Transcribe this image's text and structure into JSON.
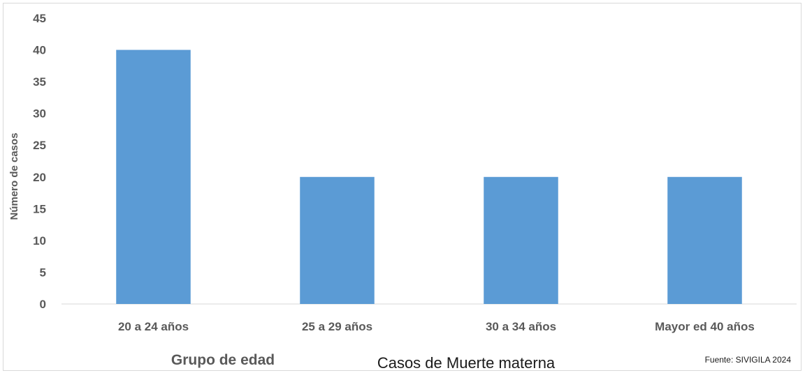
{
  "chart_data": {
    "type": "bar",
    "title": "Casos de Muerte materna",
    "xlabel": "Grupo de edad",
    "ylabel": "Número de casos",
    "categories": [
      "20 a 24 años",
      "25 a 29 años",
      "30 a 34 años",
      "Mayor ed 40 años"
    ],
    "values": [
      40,
      20,
      20,
      20
    ],
    "ylim": [
      0,
      45
    ],
    "yticks": [
      "0",
      "5",
      "10",
      "15",
      "20",
      "25",
      "30",
      "35",
      "40",
      "45"
    ],
    "grid": false,
    "legend": "none",
    "bar_color": "#5b9bd5",
    "source": "Fuente: SIVIGILA 2024"
  }
}
